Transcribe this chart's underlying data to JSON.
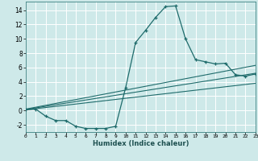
{
  "title": "",
  "xlabel": "Humidex (Indice chaleur)",
  "ylabel": "",
  "bg_color": "#cee9e9",
  "grid_color": "#ffffff",
  "line_color": "#1e6b6b",
  "xlim": [
    0,
    23
  ],
  "ylim": [
    -3.0,
    15.2
  ],
  "xticks": [
    0,
    1,
    2,
    3,
    4,
    5,
    6,
    7,
    8,
    9,
    10,
    11,
    12,
    13,
    14,
    15,
    16,
    17,
    18,
    19,
    20,
    21,
    22,
    23
  ],
  "yticks": [
    -2,
    0,
    2,
    4,
    6,
    8,
    10,
    12,
    14
  ],
  "curve_x": [
    0,
    1,
    2,
    3,
    4,
    5,
    6,
    7,
    8,
    9,
    10,
    11,
    12,
    13,
    14,
    15,
    16,
    17,
    18,
    19,
    20,
    21,
    22,
    23
  ],
  "curve_y": [
    0.1,
    0.2,
    -0.8,
    -1.4,
    -1.4,
    -2.2,
    -2.5,
    -2.5,
    -2.5,
    -2.2,
    3.2,
    9.5,
    11.2,
    13.0,
    14.5,
    14.6,
    10.0,
    7.1,
    6.8,
    6.5,
    6.6,
    5.0,
    4.8,
    5.1
  ],
  "line1_x": [
    0,
    23
  ],
  "line1_y": [
    0.1,
    3.8
  ],
  "line2_x": [
    0,
    23
  ],
  "line2_y": [
    0.15,
    5.2
  ],
  "line3_x": [
    0,
    23
  ],
  "line3_y": [
    0.2,
    6.3
  ]
}
